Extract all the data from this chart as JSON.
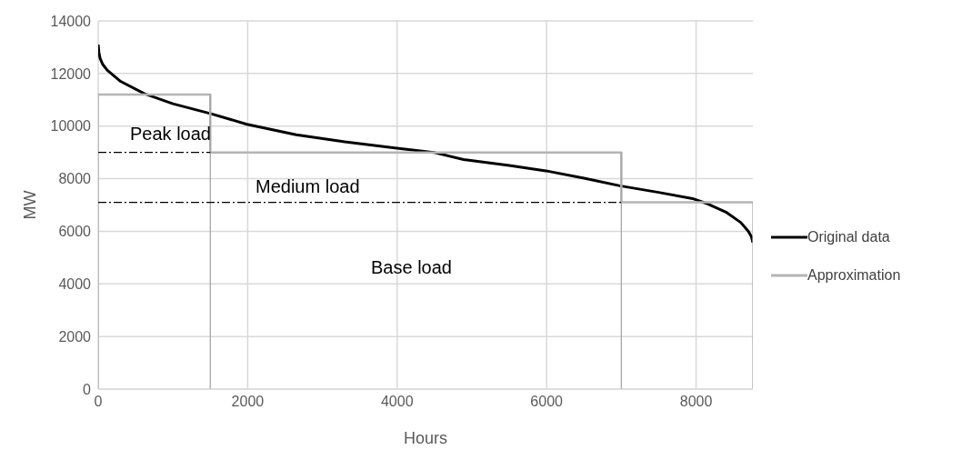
{
  "chart_data": {
    "type": "line",
    "xlabel": "Hours",
    "ylabel": "MW",
    "xlim": [
      0,
      8760
    ],
    "xticks": [
      0,
      2000,
      4000,
      6000,
      8000
    ],
    "ylim": [
      0,
      14000
    ],
    "yticks": [
      0,
      2000,
      4000,
      6000,
      8000,
      10000,
      12000,
      14000
    ],
    "grid": true,
    "legend": "right",
    "marker": "none",
    "series": [
      {
        "name": "Original data",
        "color": "#000000",
        "x": [
          0,
          10,
          26,
          60,
          120,
          300,
          620,
          1000,
          1510,
          1990,
          2650,
          3300,
          3970,
          4490,
          4890,
          5500,
          5990,
          6500,
          6980,
          7500,
          7970,
          8130,
          8400,
          8600,
          8700,
          8740,
          8760
        ],
        "values": [
          13100,
          12800,
          12570,
          12350,
          12130,
          11700,
          11230,
          10850,
          10470,
          10070,
          9670,
          9400,
          9170,
          9000,
          8730,
          8500,
          8300,
          8020,
          7730,
          7480,
          7230,
          7070,
          6730,
          6330,
          6000,
          5800,
          5570
        ]
      },
      {
        "name": "Approximation",
        "color": "#b4b4b4",
        "x": [
          0,
          1500,
          1500,
          7000,
          7000,
          8760
        ],
        "values": [
          11200,
          11200,
          9000,
          9000,
          7100,
          7100
        ]
      },
      {
        "color": "#a6a6a6",
        "x": [
          0,
          0
        ],
        "values": [
          0,
          11200
        ]
      },
      {
        "color": "#a6a6a6",
        "x": [
          1500,
          1500
        ],
        "values": [
          0,
          11200
        ]
      },
      {
        "color": "#a6a6a6",
        "x": [
          7000,
          7000
        ],
        "values": [
          0,
          9000
        ]
      },
      {
        "color": "#a6a6a6",
        "x": [
          8760,
          8760
        ],
        "values": [
          0,
          7100
        ]
      },
      {
        "color": "#000000",
        "line_style": "dashed",
        "x": [
          0,
          1500
        ],
        "values": [
          9000,
          9000
        ]
      },
      {
        "color": "#000000",
        "line_style": "dashed",
        "x": [
          0,
          7000
        ],
        "values": [
          7100,
          7100
        ]
      }
    ],
    "annotations": [
      "Peak load",
      "Medium load",
      "Base load"
    ]
  }
}
